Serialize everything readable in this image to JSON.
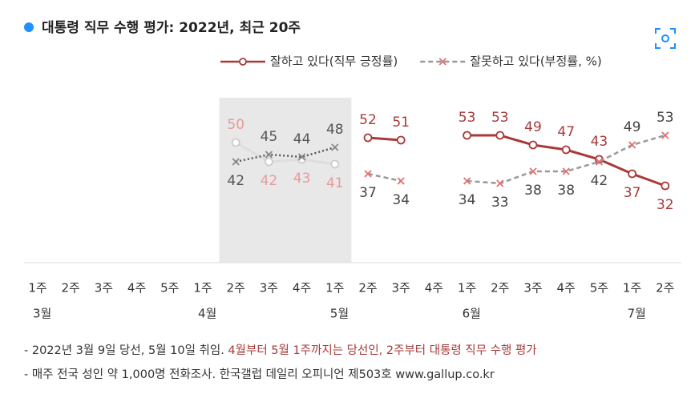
{
  "chart_data": {
    "type": "line",
    "title": "대통령 직무 수행 평가: 2022년, 최근 20주",
    "categories": [
      "1주",
      "2주",
      "3주",
      "4주",
      "5주",
      "1주",
      "2주",
      "3주",
      "4주",
      "1주",
      "2주",
      "3주",
      "4주",
      "1주",
      "2주",
      "3주",
      "4주",
      "5주",
      "1주",
      "2주"
    ],
    "months": [
      "3월",
      null,
      null,
      null,
      null,
      "4월",
      null,
      null,
      null,
      "5월",
      null,
      null,
      null,
      "6월",
      null,
      null,
      null,
      null,
      "7월",
      null
    ],
    "ylim": [
      0,
      70
    ],
    "series": [
      {
        "name": "잘하고 있다(직무 긍정률)",
        "color": "#a83a3a",
        "marker_color": "#a83a3a",
        "label_color": "#a83a3a",
        "dash": "solid",
        "marker": "circle",
        "values": [
          null,
          null,
          null,
          null,
          null,
          null,
          null,
          null,
          null,
          null,
          52,
          51,
          null,
          53,
          53,
          49,
          47,
          43,
          37,
          32
        ]
      },
      {
        "name": "잘못하고 있다(부정률, %)",
        "color": "#999999",
        "marker_color": "#e07070",
        "label_color": "#444444",
        "dash": "dashed",
        "marker": "x",
        "values": [
          null,
          null,
          null,
          null,
          null,
          null,
          null,
          null,
          null,
          null,
          37,
          34,
          null,
          34,
          33,
          38,
          38,
          42,
          49,
          53
        ]
      }
    ],
    "pre_inauguration_series": [
      {
        "color": "#dddddd",
        "marker_color": "#cccccc",
        "label_color": "#e89a9a",
        "dash": "solid",
        "marker": "circle",
        "values": [
          null,
          null,
          null,
          null,
          null,
          null,
          50,
          42,
          43,
          41,
          null,
          null,
          null,
          null,
          null,
          null,
          null,
          null,
          null,
          null
        ]
      },
      {
        "color": "#555555",
        "marker_color": "#888888",
        "label_color": "#555555",
        "dash": "dotted",
        "marker": "x",
        "values": [
          null,
          null,
          null,
          null,
          null,
          null,
          42,
          45,
          44,
          48,
          null,
          null,
          null,
          null,
          null,
          null,
          null,
          null,
          null,
          null
        ]
      }
    ],
    "shade_color": "#e8e8e8",
    "notes": [
      {
        "text": "- 2022년 3월 9일 당선, 5월 10일 취임.",
        "highlight": "4월부터 5월 1주까지는 당선인, 2주부터 대통령 직무 수행 평가"
      },
      {
        "text": "- 매주 전국 성인 약 1,000명 전화조사. 한국갤럽 데일리 오피니언 제503호 www.gallup.co.kr"
      }
    ]
  }
}
